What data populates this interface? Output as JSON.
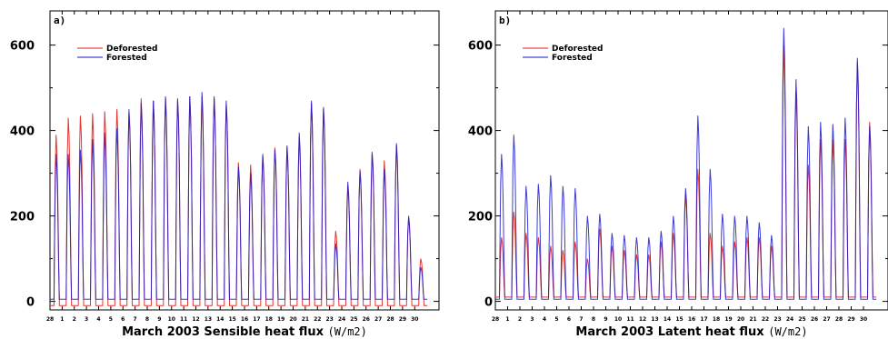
{
  "colors": {
    "deforested": "#e0201c",
    "forested": "#1a1ad0",
    "axis": "#000000"
  },
  "chart_data": [
    {
      "type": "line",
      "panel_label": "a)",
      "xlabel": "March 2003 Sensible heat flux",
      "xlabel_unit": "(W/m2)",
      "ylabel": "",
      "ylim": [
        -20,
        680
      ],
      "xlim": [
        0,
        32
      ],
      "yticks": [
        0,
        200,
        400,
        600
      ],
      "x_tick_labels": [
        "28",
        "1",
        "2",
        "3",
        "4",
        "5",
        "6",
        "7",
        "8",
        "9",
        "10",
        "11",
        "12",
        "13",
        "14",
        "15",
        "16",
        "17",
        "18",
        "19",
        "20",
        "21",
        "22",
        "23",
        "24",
        "25",
        "26",
        "27",
        "28",
        "29",
        "30"
      ],
      "legend_position": "top-left",
      "series": [
        {
          "name": "Deforested",
          "daily_peak": [
            390,
            430,
            435,
            440,
            445,
            450,
            440,
            475,
            470,
            475,
            470,
            480,
            480,
            475,
            460,
            325,
            320,
            340,
            360,
            360,
            385,
            465,
            450,
            165,
            270,
            310,
            345,
            330,
            365,
            195,
            100
          ],
          "night_value": -10
        },
        {
          "name": "Forested",
          "daily_peak": [
            345,
            345,
            355,
            380,
            395,
            405,
            450,
            465,
            470,
            480,
            475,
            480,
            490,
            480,
            470,
            315,
            300,
            345,
            355,
            365,
            395,
            470,
            455,
            135,
            280,
            305,
            350,
            310,
            370,
            200,
            80
          ],
          "night_value": 5
        }
      ]
    },
    {
      "type": "line",
      "panel_label": "b)",
      "xlabel": "March 2003 Latent heat flux",
      "xlabel_unit": "(W/m2)",
      "ylabel": "",
      "ylim": [
        -20,
        680
      ],
      "xlim": [
        0,
        32
      ],
      "yticks": [
        0,
        200,
        400,
        600
      ],
      "x_tick_labels": [
        "28",
        "1",
        "2",
        "3",
        "4",
        "5",
        "6",
        "7",
        "8",
        "9",
        "10",
        "11",
        "12",
        "13",
        "14",
        "15",
        "16",
        "17",
        "18",
        "19",
        "20",
        "21",
        "22",
        "23",
        "24",
        "25",
        "26",
        "27",
        "28",
        "29",
        "30"
      ],
      "legend_position": "top-left",
      "series": [
        {
          "name": "Deforested",
          "daily_peak": [
            150,
            210,
            160,
            150,
            130,
            120,
            140,
            100,
            170,
            130,
            120,
            110,
            110,
            140,
            160,
            250,
            310,
            160,
            130,
            140,
            150,
            150,
            130,
            600,
            490,
            320,
            380,
            380,
            380,
            560,
            420
          ],
          "night_value": 10
        },
        {
          "name": "Forested",
          "daily_peak": [
            345,
            390,
            270,
            275,
            295,
            270,
            265,
            200,
            205,
            160,
            155,
            150,
            150,
            165,
            200,
            265,
            435,
            310,
            205,
            200,
            200,
            185,
            155,
            640,
            520,
            410,
            420,
            415,
            430,
            570,
            410
          ],
          "night_value": 5
        }
      ]
    }
  ]
}
